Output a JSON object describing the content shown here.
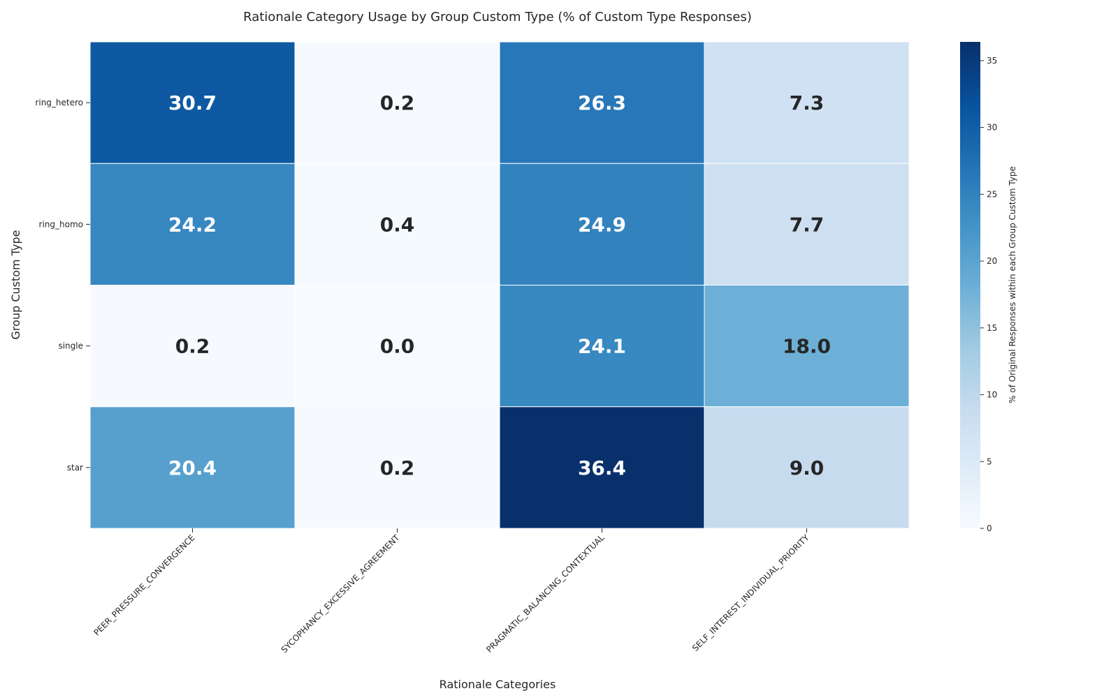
{
  "chart_data": {
    "type": "heatmap",
    "title": "Rationale Category Usage by Group Custom Type (% of Custom Type Responses)",
    "xlabel": "Rationale Categories",
    "ylabel": "Group Custom Type",
    "x_categories": [
      "PEER_PRESSURE_CONVERGENCE",
      "SYCOPHANCY_EXCESSIVE_AGREEMENT",
      "PRAGMATIC_BALANCING_CONTEXTUAL",
      "SELF_INTEREST_INDIVIDUAL_PRIORITY"
    ],
    "y_categories": [
      "ring_hetero",
      "ring_homo",
      "single",
      "star"
    ],
    "values": [
      [
        30.7,
        0.2,
        26.3,
        7.3
      ],
      [
        24.2,
        0.4,
        24.9,
        7.7
      ],
      [
        0.2,
        0.0,
        24.1,
        18.0
      ],
      [
        20.4,
        0.2,
        36.4,
        9.0
      ]
    ],
    "colorbar": {
      "label": "% of Original Responses within each Group Custom Type",
      "range": [
        0,
        36.4
      ],
      "ticks": [
        0,
        5,
        10,
        15,
        20,
        25,
        30,
        35
      ],
      "colormap": "Blues"
    },
    "annotation_format": "0.1f"
  }
}
